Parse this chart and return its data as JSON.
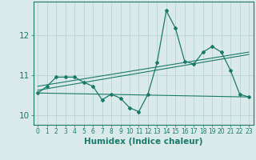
{
  "xlabel": "Humidex (Indice chaleur)",
  "bg_color": "#daeaea",
  "line_color": "#1a7a6a",
  "grid_color": "#b8d4d4",
  "xlim": [
    -0.5,
    23.5
  ],
  "ylim": [
    9.75,
    12.85
  ],
  "xticks": [
    0,
    1,
    2,
    3,
    4,
    5,
    6,
    7,
    8,
    9,
    10,
    11,
    12,
    13,
    14,
    15,
    16,
    17,
    18,
    19,
    20,
    21,
    22,
    23
  ],
  "yticks": [
    10,
    11,
    12
  ],
  "main_x": [
    0,
    1,
    2,
    3,
    4,
    5,
    6,
    7,
    8,
    9,
    10,
    11,
    12,
    13,
    14,
    15,
    16,
    17,
    18,
    19,
    20,
    21,
    22,
    23
  ],
  "main_y": [
    10.55,
    10.72,
    10.95,
    10.95,
    10.95,
    10.82,
    10.72,
    10.38,
    10.52,
    10.42,
    10.18,
    10.08,
    10.52,
    11.32,
    12.62,
    12.18,
    11.35,
    11.28,
    11.58,
    11.72,
    11.58,
    11.12,
    10.52,
    10.45
  ],
  "line2_x": [
    0,
    23
  ],
  "line2_y": [
    10.55,
    10.45
  ],
  "line3_x": [
    0,
    23
  ],
  "line3_y": [
    10.72,
    11.58
  ],
  "line4_x": [
    0,
    23
  ],
  "line4_y": [
    10.62,
    11.52
  ],
  "fontsize_xlabel": 7.5,
  "fontsize_yticks": 7.5,
  "fontsize_xticks": 5.5,
  "marker": "D",
  "markersize": 2.0
}
